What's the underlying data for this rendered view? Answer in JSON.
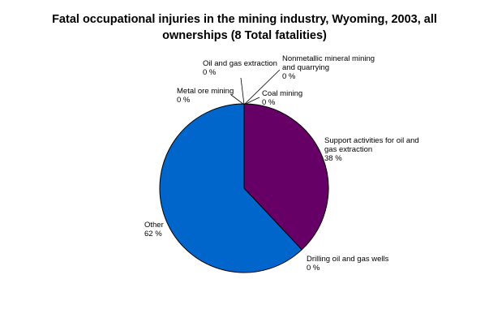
{
  "chart_data": {
    "type": "pie",
    "title_line1": "Fatal occupational injuries in the mining industry, Wyoming, 2003, all",
    "title_line2": "ownerships (8 Total fatalities)",
    "slices": [
      {
        "name": "Support activities for oil and gas extraction",
        "value": 38,
        "pct_label": "38 %",
        "color": "#660066",
        "label_lines": [
          "Support activities for oil and",
          "gas extraction",
          "38 %"
        ]
      },
      {
        "name": "Drilling oil and gas wells",
        "value": 0,
        "pct_label": "0 %",
        "color": "#9999ff",
        "label_lines": [
          "Drilling oil and gas wells",
          "0 %"
        ]
      },
      {
        "name": "Other",
        "value": 62,
        "pct_label": "62 %",
        "color": "#0066cc",
        "label_lines": [
          "Other",
          "62 %"
        ]
      },
      {
        "name": "Metal ore mining",
        "value": 0,
        "pct_label": "0 %",
        "color": "#993366",
        "label_lines": [
          "Metal ore mining",
          "0 %"
        ]
      },
      {
        "name": "Oil and gas extraction",
        "value": 0,
        "pct_label": "0 %",
        "color": "#ffffcc",
        "label_lines": [
          "Oil and gas extraction",
          "0 %"
        ]
      },
      {
        "name": "Nonmetallic mineral mining and quarrying",
        "value": 0,
        "pct_label": "0 %",
        "color": "#ccffff",
        "label_lines": [
          "Nonmetallic mineral mining",
          "and quarrying",
          "0 %"
        ]
      },
      {
        "name": "Coal mining",
        "value": 0,
        "pct_label": "0 %",
        "color": "#ff8080",
        "label_lines": [
          "Coal mining",
          "0 %"
        ]
      }
    ]
  }
}
